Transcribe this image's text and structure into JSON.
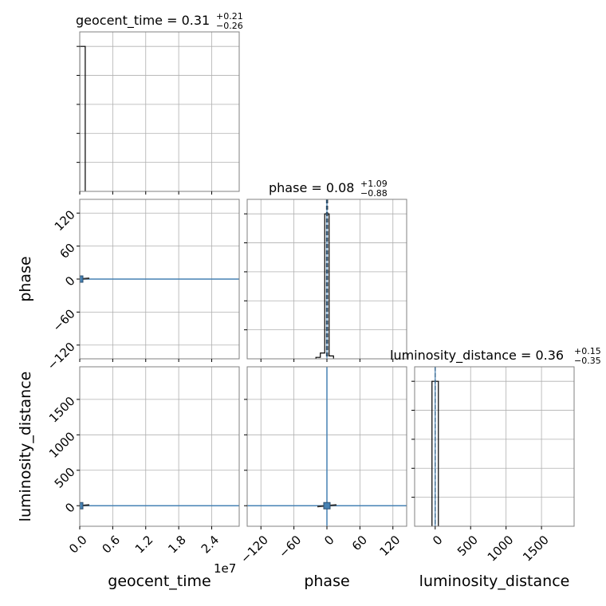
{
  "chart_data": {
    "type": "corner",
    "parameters": [
      "geocent_time",
      "phase",
      "luminosity_distance"
    ],
    "colors": {
      "accent": "#4682b4",
      "hist": "#000000",
      "grid": "#b0b0b0",
      "frame": "#808080"
    },
    "titles": {
      "geocent_time": {
        "name": "geocent_time = 0.31",
        "plus": "+0.21",
        "minus": "−0.26"
      },
      "phase": {
        "name": "phase = 0.08",
        "plus": "+1.09",
        "minus": "−0.88"
      },
      "luminosity_distance": {
        "name": "luminosity_distance = 0.36",
        "plus": "+0.15",
        "minus": "−0.35"
      }
    },
    "axis_labels": {
      "x": [
        "geocent_time",
        "phase",
        "luminosity_distance"
      ],
      "y": [
        "phase",
        "luminosity_distance"
      ]
    },
    "offset_text": "1e7",
    "ranges": {
      "geocent_time": [
        0,
        2.9
      ],
      "phase": [
        -145,
        145
      ],
      "luminosity_distance": [
        -290,
        1960
      ]
    },
    "ticks": {
      "geocent_time": {
        "values": [
          0.0,
          0.6,
          1.2,
          1.8,
          2.4
        ],
        "labels": [
          "0.0",
          "0.6",
          "1.2",
          "1.8",
          "2.4"
        ]
      },
      "phase": {
        "values": [
          -120,
          -60,
          0,
          60,
          120
        ],
        "labels": [
          "−120",
          "−60",
          "0",
          "60",
          "120"
        ]
      },
      "luminosity_distance_x": {
        "values": [
          0,
          500,
          1000,
          1500
        ],
        "labels": [
          "0",
          "500",
          "1000",
          "1500"
        ]
      },
      "luminosity_distance_y": {
        "values": [
          0,
          500,
          1000,
          1500
        ],
        "labels": [
          "0",
          "500",
          "1000",
          "1500"
        ]
      }
    },
    "histograms": {
      "geocent_time": {
        "ylim": [
          0,
          1.0
        ],
        "bins": [
          {
            "x0": 0,
            "x1": 0.1,
            "y": 1.0
          }
        ]
      },
      "phase": {
        "ylim": [
          0,
          1.0
        ],
        "bins": [
          {
            "x0": -20,
            "x1": -12,
            "y": 0.01
          },
          {
            "x0": -12,
            "x1": -4,
            "y": 0.04
          },
          {
            "x0": -4,
            "x1": 4,
            "y": 1.0
          },
          {
            "x0": 4,
            "x1": 12,
            "y": 0.02
          }
        ]
      },
      "luminosity_distance": {
        "ylim": [
          0,
          1.0
        ],
        "bins": [
          {
            "x0": -45,
            "x1": 45,
            "y": 1.0
          }
        ]
      }
    },
    "quantile_lines": {
      "geocent_time": [],
      "phase": [
        -0.8,
        0.08,
        1.17
      ],
      "luminosity_distance": [
        0.01,
        0.36,
        0.51
      ]
    },
    "truth_markers": {
      "phase": 0,
      "luminosity_distance": 0
    },
    "scatter_points": [
      {
        "x": 0.0,
        "y_phase": 0,
        "y_dist": 0
      }
    ]
  }
}
